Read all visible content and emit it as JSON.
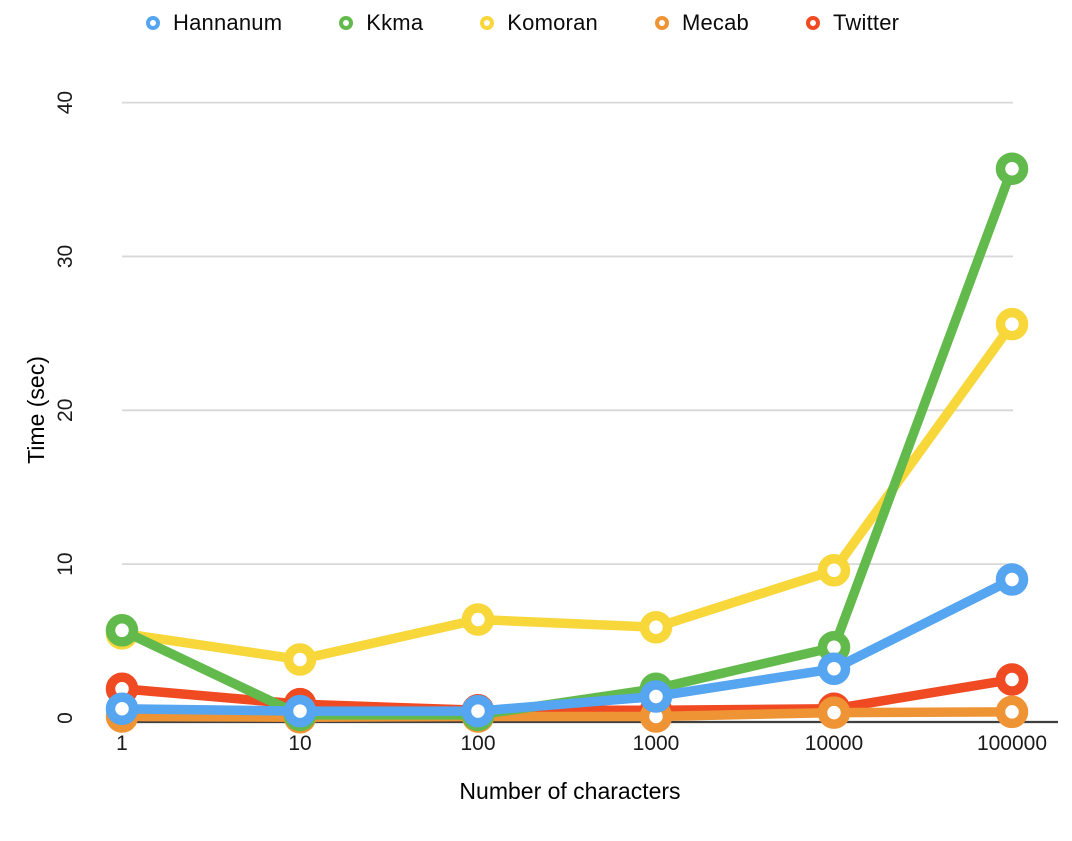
{
  "chart_data": {
    "type": "line",
    "title": "",
    "xlabel": "Number of characters",
    "ylabel": "Time (sec)",
    "categories": [
      "1",
      "10",
      "100",
      "1000",
      "10000",
      "100000"
    ],
    "x_scale_note": "categories are powers of 10, evenly spaced",
    "yticks": [
      0,
      10,
      20,
      30,
      40
    ],
    "ylim": [
      0,
      40
    ],
    "grid": "horizontal-only",
    "grid_color": "#d8d8d8",
    "axis_line_color": "#3f3f3f",
    "background_color": "#ffffff",
    "legend_position": "top",
    "marker_style": "open-ring",
    "series": [
      {
        "name": "Hannanum",
        "color": "#55a5f0",
        "values": [
          0.6,
          0.45,
          0.45,
          1.4,
          3.2,
          9.0
        ]
      },
      {
        "name": "Kkma",
        "color": "#63ba4c",
        "values": [
          5.7,
          0.2,
          0.2,
          1.9,
          4.6,
          35.7
        ]
      },
      {
        "name": "Komoran",
        "color": "#f8d73b",
        "values": [
          5.5,
          3.8,
          6.4,
          5.9,
          9.6,
          25.6
        ]
      },
      {
        "name": "Mecab",
        "color": "#ee9434",
        "values": [
          0.1,
          0.05,
          0.1,
          0.1,
          0.35,
          0.4
        ]
      },
      {
        "name": "Twitter",
        "color": "#f04a22",
        "values": [
          1.9,
          0.9,
          0.5,
          0.5,
          0.6,
          2.5
        ]
      }
    ],
    "draw_order": [
      "Twitter",
      "Mecab",
      "Komoran",
      "Kkma",
      "Hannanum"
    ]
  }
}
